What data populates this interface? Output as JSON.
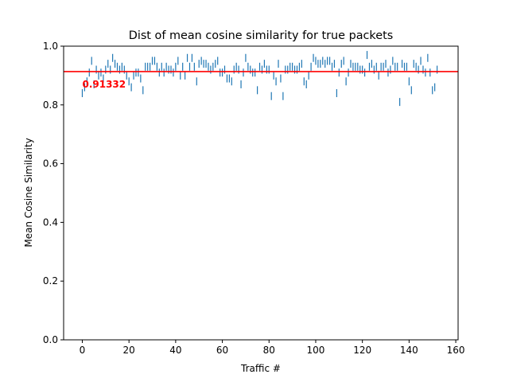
{
  "chart_data": {
    "type": "scatter",
    "marker": "vertical-line",
    "title": "Dist of mean cosine similarity for true packets",
    "xlabel": "Traffic #",
    "ylabel": "Mean Cosine Similarity",
    "xlim": [
      -8,
      161
    ],
    "ylim": [
      0.0,
      1.0
    ],
    "xticks": [
      0,
      20,
      40,
      60,
      80,
      100,
      120,
      140,
      160
    ],
    "yticks": [
      0.0,
      0.2,
      0.4,
      0.6,
      0.8,
      1.0
    ],
    "xtick_labels": [
      "0",
      "20",
      "40",
      "60",
      "80",
      "100",
      "120",
      "140",
      "160"
    ],
    "ytick_labels": [
      "0.0",
      "0.2",
      "0.4",
      "0.6",
      "0.8",
      "1.0"
    ],
    "grid": false,
    "series_color": "#1f77b4",
    "mean_line": {
      "value": 0.91332,
      "label": "0.91332",
      "color": "#ff0000"
    },
    "x": [
      0,
      1,
      2,
      3,
      4,
      5,
      6,
      7,
      8,
      9,
      10,
      11,
      12,
      13,
      14,
      15,
      16,
      17,
      18,
      19,
      20,
      21,
      22,
      23,
      24,
      25,
      26,
      27,
      28,
      29,
      30,
      31,
      32,
      33,
      34,
      35,
      36,
      37,
      38,
      39,
      40,
      41,
      42,
      43,
      44,
      45,
      46,
      47,
      48,
      49,
      50,
      51,
      52,
      53,
      54,
      55,
      56,
      57,
      58,
      59,
      60,
      61,
      62,
      63,
      64,
      65,
      66,
      67,
      68,
      69,
      70,
      71,
      72,
      73,
      74,
      75,
      76,
      77,
      78,
      79,
      80,
      81,
      82,
      83,
      84,
      85,
      86,
      87,
      88,
      89,
      90,
      91,
      92,
      93,
      94,
      95,
      96,
      97,
      98,
      99,
      100,
      101,
      102,
      103,
      104,
      105,
      106,
      107,
      108,
      109,
      110,
      111,
      112,
      113,
      114,
      115,
      116,
      117,
      118,
      119,
      120,
      121,
      122,
      123,
      124,
      125,
      126,
      127,
      128,
      129,
      130,
      131,
      132,
      133,
      134,
      135,
      136,
      137,
      138,
      139,
      140,
      141,
      142,
      143,
      144,
      145,
      146,
      147,
      148,
      149,
      150,
      151,
      152
    ],
    "y": [
      0.84,
      0.86,
      0.88,
      0.91,
      0.95,
      0.87,
      0.92,
      0.9,
      0.91,
      0.89,
      0.92,
      0.94,
      0.92,
      0.96,
      0.94,
      0.93,
      0.92,
      0.93,
      0.92,
      0.9,
      0.88,
      0.86,
      0.9,
      0.91,
      0.91,
      0.89,
      0.85,
      0.93,
      0.93,
      0.93,
      0.95,
      0.95,
      0.93,
      0.91,
      0.93,
      0.91,
      0.93,
      0.92,
      0.92,
      0.91,
      0.93,
      0.95,
      0.9,
      0.93,
      0.9,
      0.96,
      0.93,
      0.96,
      0.93,
      0.88,
      0.94,
      0.95,
      0.94,
      0.94,
      0.93,
      0.92,
      0.93,
      0.94,
      0.95,
      0.91,
      0.91,
      0.92,
      0.89,
      0.89,
      0.88,
      0.92,
      0.93,
      0.92,
      0.87,
      0.91,
      0.96,
      0.93,
      0.92,
      0.91,
      0.91,
      0.85,
      0.93,
      0.92,
      0.94,
      0.92,
      0.92,
      0.83,
      0.9,
      0.88,
      0.94,
      0.89,
      0.83,
      0.92,
      0.92,
      0.93,
      0.93,
      0.92,
      0.92,
      0.93,
      0.94,
      0.88,
      0.87,
      0.9,
      0.93,
      0.96,
      0.95,
      0.94,
      0.94,
      0.95,
      0.94,
      0.95,
      0.95,
      0.93,
      0.94,
      0.84,
      0.91,
      0.94,
      0.95,
      0.88,
      0.91,
      0.94,
      0.93,
      0.93,
      0.93,
      0.92,
      0.92,
      0.91,
      0.97,
      0.93,
      0.94,
      0.92,
      0.93,
      0.9,
      0.93,
      0.93,
      0.94,
      0.91,
      0.92,
      0.95,
      0.93,
      0.93,
      0.81,
      0.94,
      0.93,
      0.93,
      0.88,
      0.85,
      0.94,
      0.93,
      0.92,
      0.95,
      0.92,
      0.91,
      0.96,
      0.91,
      0.85,
      0.86,
      0.92
    ]
  }
}
